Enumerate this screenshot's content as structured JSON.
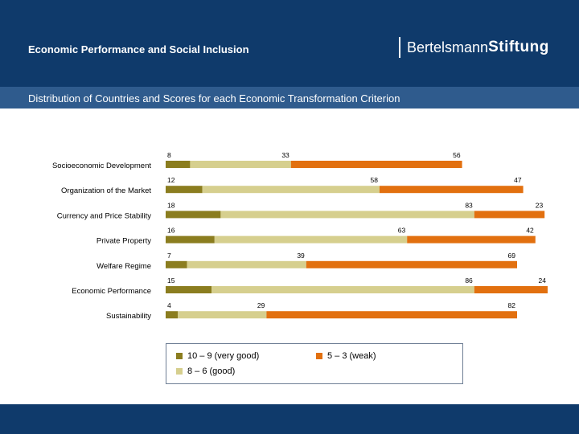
{
  "header": {
    "title": "Economic Performance and Social Inclusion",
    "brand_regular": "Bertelsmann",
    "brand_bold": "Stiftung",
    "subtitle": "Distribution of Countries and Scores for each Economic Transformation Criterion"
  },
  "colors": {
    "header_bg": "#0f3a6b",
    "subheader_bg": "#2f5b8d",
    "very_good": "#8b7d1f",
    "good": "#d6cf8e",
    "weak": "#e2700f"
  },
  "chart_data": {
    "type": "bar",
    "orientation": "horizontal",
    "stacked": true,
    "categories": [
      "Socioeconomic Development",
      "Organization of the Market",
      "Currency and Price Stability",
      "Private Property",
      "Welfare Regime",
      "Economic Performance",
      "Sustainability"
    ],
    "series": [
      {
        "name": "10 – 9 (very good)",
        "color": "#8b7d1f",
        "values": [
          8,
          12,
          18,
          16,
          7,
          15,
          4
        ]
      },
      {
        "name": "8 – 6 (good)",
        "color": "#d6cf8e",
        "values": [
          33,
          58,
          83,
          63,
          39,
          86,
          29
        ]
      },
      {
        "name": "5 – 3 (weak)",
        "color": "#e2700f",
        "values": [
          56,
          47,
          23,
          42,
          69,
          24,
          82
        ]
      }
    ],
    "legend_position": "bottom",
    "grid": false
  }
}
